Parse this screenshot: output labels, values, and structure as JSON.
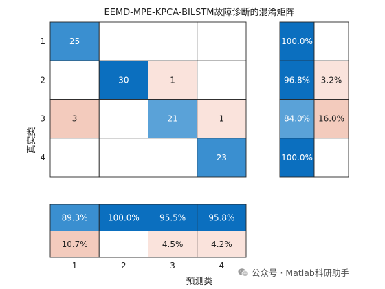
{
  "chart_data": {
    "type": "heatmap",
    "title": "EEMD-MPE-KPCA-BILSTM故障诊断的混淆矩阵",
    "xlabel": "预测类",
    "ylabel": "真实类",
    "classes": [
      "1",
      "2",
      "3",
      "4"
    ],
    "matrix": [
      [
        25,
        0,
        0,
        0
      ],
      [
        0,
        30,
        1,
        0
      ],
      [
        3,
        0,
        21,
        1
      ],
      [
        0,
        0,
        0,
        23
      ]
    ],
    "row_summary": [
      [
        "100.0%",
        ""
      ],
      [
        "96.8%",
        "3.2%"
      ],
      [
        "84.0%",
        "16.0%"
      ],
      [
        "100.0%",
        ""
      ]
    ],
    "column_summary": {
      "correct": [
        "89.3%",
        "100.0%",
        "95.5%",
        "95.8%"
      ],
      "incorrect": [
        "10.7%",
        "",
        "4.5%",
        "4.2%"
      ]
    },
    "colors": {
      "correct_dark": "#0b6fbf",
      "correct_mid": "#3a8fd0",
      "correct_light": "#5aa2d8",
      "incorrect_light": "#fae3dc",
      "incorrect_mid": "#f3cbbd",
      "empty": "#ffffff"
    }
  },
  "watermark": {
    "text": "公众号 · Matlab科研助手",
    "icon": "wechat-icon"
  }
}
